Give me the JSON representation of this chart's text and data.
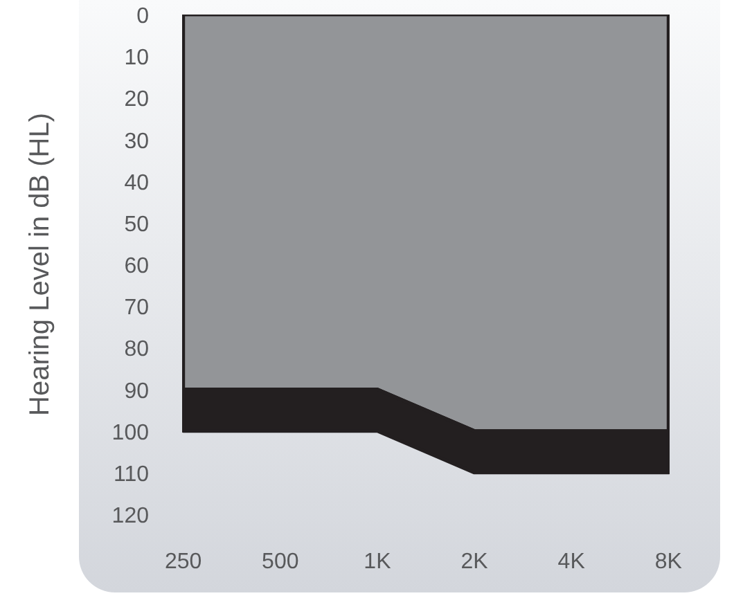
{
  "chart_data": {
    "type": "area",
    "stacked": true,
    "ylabel": "Hearing Level in dB (HL)",
    "categories": [
      "250",
      "500",
      "1K",
      "2K",
      "4K",
      "8K"
    ],
    "series": [
      {
        "color": "#939598",
        "values": [
          90,
          90,
          90,
          100,
          100,
          100
        ]
      },
      {
        "color": "#231f20",
        "values": [
          10,
          10,
          10,
          10,
          10,
          10
        ]
      }
    ],
    "ylim": [
      120,
      0
    ],
    "yticks": [
      0,
      10,
      20,
      30,
      40,
      50,
      60,
      70,
      80,
      90,
      100,
      110,
      120
    ]
  }
}
